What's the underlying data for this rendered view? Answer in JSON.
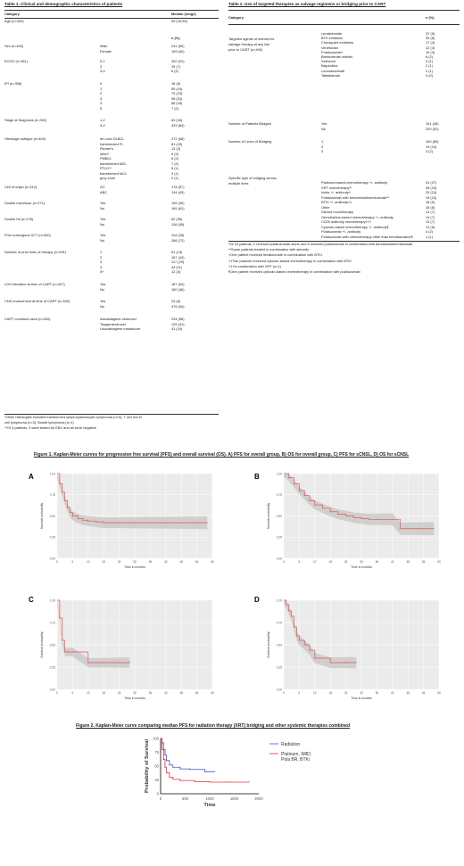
{
  "table1": {
    "title": "Table 1. Clinical and demographic characteristics of patients",
    "col_category": "Category",
    "col_value": "Median (range)",
    "age_label": "Age (n=400)",
    "age_value": "59 (18-84)",
    "n_header": "n (%)",
    "groups": [
      {
        "label": "Sex (n=400)",
        "rows": [
          [
            "Male",
            "241 (60)"
          ],
          [
            "Female",
            "159 (40)"
          ]
        ]
      },
      {
        "label": "ECOG (n=351)",
        "rows": [
          [
            "0-1",
            "320 (91)"
          ],
          [
            "2",
            "25 (7)"
          ],
          [
            "3-4",
            "6 (2)"
          ]
        ]
      },
      {
        "label": "IPI (n=306)",
        "rows": [
          [
            "0",
            "18 (6)"
          ],
          [
            "1",
            "59 (19)"
          ],
          [
            "2",
            "70 (23)"
          ],
          [
            "3",
            "96 (31)"
          ],
          [
            "4",
            "56 (18)"
          ],
          [
            "5",
            "7 (2)"
          ]
        ]
      },
      {
        "label": "Stage at Diagnosis (n=392)",
        "rows": [
          [
            "1-2",
            "63 (16)"
          ],
          [
            "3-4",
            "329 (84)"
          ]
        ]
      },
      {
        "label": "Histologic subtype (n=400)",
        "rows": [
          [
            "de novo DLBCL",
            "272 (68)"
          ],
          [
            "transformed FL",
            "81 (20)"
          ],
          [
            "Richter's",
            "13 (3)"
          ],
          [
            "other*",
            "9 (3)"
          ],
          [
            "PMBCL",
            "8 (2)"
          ],
          [
            "transformed MZL",
            "7 (2)"
          ],
          [
            "PTLD**",
            "5 (1)"
          ],
          [
            "transformed MCL",
            "3 (1)"
          ],
          [
            "grey zone",
            "2 (1)"
          ]
        ]
      },
      {
        "label": "Cell of origin (n=312)",
        "rows": [
          [
            "GC",
            "178 (57)"
          ],
          [
            "ABC",
            "134 (43)"
          ]
        ]
      },
      {
        "label": "Double expressor (n=271)",
        "rows": [
          [
            "Yes",
            "106 (39)"
          ],
          [
            "No",
            "165 (61)"
          ]
        ]
      },
      {
        "label": "Double hit (n=178)",
        "rows": [
          [
            "Yes",
            "62 (35)"
          ],
          [
            "No",
            "116 (65)"
          ]
        ]
      },
      {
        "label": "Prior autologous SCT (n=400)",
        "rows": [
          [
            "Yes",
            "114 (28)"
          ],
          [
            "No",
            "286 (72)"
          ]
        ]
      },
      {
        "label": "Number of prior lines of therapy (n=391)",
        "rows": [
          [
            "1",
            "51 (13)"
          ],
          [
            "2",
            "167 (43)"
          ],
          [
            "3",
            "117 (29)"
          ],
          [
            "4",
            "44 (11)"
          ],
          [
            "5+",
            "12 (3)"
          ]
        ]
      },
      {
        "label": "LDH elevation at time of CART (n=347)",
        "rows": [
          [
            "Yes",
            "187 (54)"
          ],
          [
            "No",
            "160 (46)"
          ]
        ]
      },
      {
        "label": "CNS involvement at time of CART (n=400)",
        "rows": [
          [
            "Yes",
            "24 (6)"
          ],
          [
            "No",
            "376 (94)"
          ]
        ]
      },
      {
        "label": "CART construct used (n=400)",
        "rows": [
          [
            "Axicabtagene ciloleucel",
            "234 (58)"
          ],
          [
            "Tisagenlecleucel",
            "125 (31)"
          ],
          [
            "Lisocabtagene maraleucel",
            "41 (10)"
          ]
        ]
      }
    ],
    "footnote1": "*Other histologies included transformed lymphoplasmacytic lymphoma (n=5), T cell rich B",
    "footnote2": "cell lymphoma (n=3), Burkitt lymphoma (n=1)",
    "footnote3": "**Of 5 patients, 3 were tested for EBV and all were negative"
  },
  "table2": {
    "title": "Table 2. Use of targeted therapies as salvage regimens or bridging prior to CART",
    "col_category": "Category",
    "col_value": "n (%)",
    "agents_label1": "Targeted agents of interest for",
    "agents_label2": "salvage therapy at any line",
    "agents_label3": "prior to CART (n=400)",
    "agents": [
      [
        "Lenalidomide",
        "37 (9)"
      ],
      [
        "BTK inhibitors",
        "30 (8)"
      ],
      [
        "Checkpoint inhibitors",
        "17 (4)"
      ],
      [
        "Venetoclax",
        "12 (3)"
      ],
      [
        "Polatuzumab*",
        "10 (3)"
      ],
      [
        "Brentuximab vedotin",
        "8 (2)"
      ],
      [
        "Selinexor",
        "3 (1)"
      ],
      [
        "Bispecifics",
        "2 (1)"
      ],
      [
        "Loncastuximab",
        "2 (1)"
      ],
      [
        "Tafasitamab",
        "0 (0)"
      ]
    ],
    "bridged_label": "Number of Patients Bridged",
    "bridged": [
      [
        "Yes",
        "191 (48)"
      ],
      [
        "No",
        "209 (52)"
      ]
    ],
    "lines_label": "Number of Lines of Bridging",
    "lines": [
      [
        "1",
        "169 (89)"
      ],
      [
        "2",
        "19 (10)"
      ],
      [
        "3",
        "3 (2)"
      ]
    ],
    "type_label1": "Specific type of bridging across",
    "type_label2": "multiple lines",
    "types": [
      [
        "Platinum-based chemotherapy +/- antibody",
        "51 (27)"
      ],
      [
        "XRT monotherapy**",
        "28 (15)"
      ],
      [
        "Imids +/- antibody†",
        "25 (13)"
      ],
      [
        "Polatuzumab with bendamustine/rituximab**",
        "19 (10)"
      ],
      [
        "BTKi +/- antibody††",
        "18 (9)"
      ],
      [
        "Other",
        "16 (8)"
      ],
      [
        "Steroid monotherapy",
        "14 (7)"
      ],
      [
        "Gemcitabine-based chemotherapy +/- antibody",
        "14 (7)"
      ],
      [
        "CD20 antibody monotherapy†††",
        "13 (7)"
      ],
      [
        "Cytoxan-based chemotherapy +/- antibody¶",
        "12 (6)"
      ],
      [
        "Polatuzumab +/- antibody",
        "4 (2)"
      ],
      [
        "Polatuzumab with chemotherapy other than bendamustine¶",
        "1 (1)"
      ]
    ],
    "footnotes": [
      "*Of 10 patients, 2 received polatuzumab alone and 8 received polatuzumab in combination with bendamustine/rituximab",
      "**Some patients treated in combination with steroids",
      "†One patient received lenalidomide in combination with BTKi",
      "††Two patients received cytoxan-based chemotherapy in combination with BTKi",
      "†††In combination with XRT (n=1)",
      "¶One patient received cytoxan-based chemotherapy in combination with polatuzumab"
    ]
  },
  "figure1": {
    "title": "Figure 1. Kaplan-Meier curves for progression free survival (PFS) and overall survival (OS). A) PFS for overall group, B) OS for overall group, C) PFS for sCNSL, D) OS for sCNSL",
    "panels": [
      "A",
      "B",
      "C",
      "D"
    ],
    "ylabel": "Survival probability",
    "xlabel": "Time in months"
  },
  "figure2": {
    "title": "Figure 2. Kaplan-Meier curve comparing median PFS for radiation therapy (XRT) bridging and other systemic therapies combined",
    "legend_radiation": "Radiation",
    "legend_other1": "Platinum, IMID,",
    "legend_other2": "Pola BR, BTKi",
    "ylabel": "Probability of Survival",
    "xlabel": "Time"
  },
  "chart_data": [
    {
      "type": "line",
      "panel": "A",
      "xlabel": "Time in months",
      "ylabel": "Survival probability",
      "x_ticks": [
        0,
        6,
        12,
        18,
        24,
        30,
        36,
        42,
        48,
        54,
        60
      ],
      "y_ticks": [
        0,
        0.25,
        0.5,
        0.75,
        1.0
      ],
      "ylim": [
        0,
        1
      ],
      "xlim": [
        0,
        60
      ],
      "series": [
        {
          "x": [
            0,
            1,
            2,
            3,
            4,
            5,
            6,
            8,
            10,
            12,
            15,
            18,
            24,
            30,
            36,
            42,
            48,
            54,
            58
          ],
          "y": [
            1.0,
            0.88,
            0.78,
            0.68,
            0.6,
            0.54,
            0.5,
            0.47,
            0.45,
            0.44,
            0.43,
            0.42,
            0.42,
            0.42,
            0.42,
            0.42,
            0.42,
            0.42,
            0.42
          ]
        }
      ]
    },
    {
      "type": "line",
      "panel": "B",
      "xlabel": "Time in months",
      "ylabel": "Survival probability",
      "x_ticks": [
        0,
        6,
        12,
        18,
        24,
        30,
        36,
        42,
        48,
        54,
        60
      ],
      "y_ticks": [
        0,
        0.25,
        0.5,
        0.75,
        1.0
      ],
      "ylim": [
        0,
        1
      ],
      "xlim": [
        0,
        60
      ],
      "series": [
        {
          "x": [
            0,
            2,
            4,
            6,
            8,
            10,
            12,
            15,
            18,
            21,
            24,
            27,
            30,
            33,
            36,
            42,
            45,
            48,
            54,
            58
          ],
          "y": [
            1.0,
            0.95,
            0.88,
            0.8,
            0.74,
            0.68,
            0.63,
            0.59,
            0.55,
            0.52,
            0.5,
            0.48,
            0.47,
            0.46,
            0.46,
            0.46,
            0.35,
            0.35,
            0.35,
            0.35
          ]
        }
      ]
    },
    {
      "type": "line",
      "panel": "C",
      "xlabel": "Time in months",
      "ylabel": "Survival probability",
      "x_ticks": [
        0,
        6,
        12,
        18,
        24,
        30,
        36,
        42,
        48,
        54,
        60
      ],
      "y_ticks": [
        0,
        0.25,
        0.5,
        0.75,
        1.0
      ],
      "ylim": [
        0,
        1
      ],
      "xlim": [
        0,
        60
      ],
      "series": [
        {
          "x": [
            0,
            1,
            2,
            3,
            4,
            6,
            12,
            18,
            24,
            28
          ],
          "y": [
            1.0,
            0.8,
            0.55,
            0.42,
            0.42,
            0.42,
            0.3,
            0.3,
            0.3,
            0.3
          ]
        }
      ]
    },
    {
      "type": "line",
      "panel": "D",
      "xlabel": "Time in months",
      "ylabel": "Survival probability",
      "x_ticks": [
        0,
        6,
        12,
        18,
        24,
        30,
        36,
        42,
        48,
        54,
        60
      ],
      "y_ticks": [
        0,
        0.25,
        0.5,
        0.75,
        1.0
      ],
      "ylim": [
        0,
        1
      ],
      "xlim": [
        0,
        60
      ],
      "series": [
        {
          "x": [
            0,
            1,
            2,
            3,
            4,
            5,
            6,
            8,
            10,
            12,
            18,
            24,
            28
          ],
          "y": [
            1.0,
            0.95,
            0.88,
            0.82,
            0.7,
            0.6,
            0.55,
            0.5,
            0.44,
            0.35,
            0.3,
            0.3,
            0.3
          ]
        }
      ]
    },
    {
      "type": "line",
      "panel": "Figure 2",
      "xlabel": "Time",
      "ylabel": "Probability of Survival",
      "x_ticks": [
        0,
        500,
        1000,
        1500,
        2000
      ],
      "y_ticks": [
        0,
        25,
        50,
        75,
        100
      ],
      "ylim": [
        0,
        100
      ],
      "xlim": [
        0,
        2000
      ],
      "series": [
        {
          "name": "Radiation",
          "color": "#3b55c8",
          "x": [
            0,
            30,
            60,
            90,
            120,
            180,
            250,
            400,
            600,
            900,
            1100
          ],
          "y": [
            100,
            92,
            80,
            70,
            60,
            52,
            48,
            45,
            44,
            40,
            40
          ]
        },
        {
          "name": "Platinum, IMID, Pola BR, BTKi",
          "color": "#e03030",
          "x": [
            0,
            30,
            60,
            90,
            120,
            180,
            250,
            400,
            700,
            1000,
            1400,
            1800
          ],
          "y": [
            100,
            80,
            62,
            48,
            38,
            30,
            26,
            24,
            22,
            21,
            21,
            21
          ]
        }
      ]
    }
  ]
}
